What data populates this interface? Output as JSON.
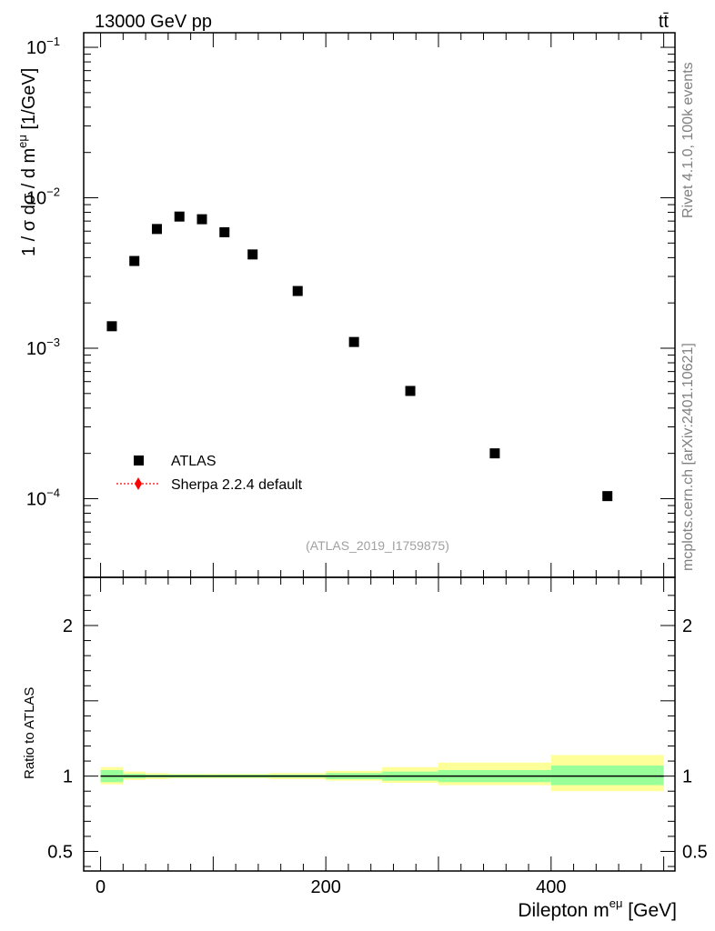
{
  "header": {
    "energy_label": "13000 GeV pp",
    "process_label": "tt̄"
  },
  "side_labels": {
    "rivet": "Rivet 4.1.0,  100k events",
    "mcplots": "mcplots.cern.ch [arXiv:2401.10621]"
  },
  "analysis_id": "(ATLAS_2019_I1759875)",
  "legend": {
    "data_label": "ATLAS",
    "mc_label": "Sherpa 2.2.4 default",
    "mc_color": "#ff0000"
  },
  "colors": {
    "band_outer": "#ffff99",
    "band_inner": "#99ff99"
  },
  "chart_data": {
    "type": "scatter",
    "title": "",
    "xlabel": "Dilepton m^eμ [GeV]",
    "ylabel": "1 / σ dσ / d m^eμ [1/GeV]",
    "ratio_ylabel": "Ratio to ATLAS",
    "xlim": [
      -15,
      510
    ],
    "ylim": [
      3e-05,
      0.125
    ],
    "yscale": "log",
    "ratio_ylim": [
      0.37,
      2.32
    ],
    "x_ticks": [
      0,
      200,
      400
    ],
    "y_ticks": [
      {
        "value": 0.0001,
        "base": "10",
        "exp": "−4"
      },
      {
        "value": 0.001,
        "base": "10",
        "exp": "−3"
      },
      {
        "value": 0.01,
        "base": "10",
        "exp": "−2"
      },
      {
        "value": 0.1,
        "base": "10",
        "exp": "−1"
      }
    ],
    "ratio_ticks": [
      {
        "value": 0.5,
        "label": "0.5"
      },
      {
        "value": 1,
        "label": "1"
      },
      {
        "value": 2,
        "label": "2"
      }
    ],
    "series": [
      {
        "name": "ATLAS",
        "bins": [
          [
            0,
            20
          ],
          [
            20,
            40
          ],
          [
            40,
            60
          ],
          [
            60,
            80
          ],
          [
            80,
            100
          ],
          [
            100,
            120
          ],
          [
            120,
            150
          ],
          [
            150,
            200
          ],
          [
            200,
            250
          ],
          [
            250,
            300
          ],
          [
            300,
            400
          ],
          [
            400,
            500
          ]
        ],
        "x": [
          10,
          30,
          50,
          70,
          90,
          110,
          135,
          175,
          225,
          275,
          350,
          450
        ],
        "values": [
          0.0014,
          0.0038,
          0.0062,
          0.0075,
          0.0072,
          0.0059,
          0.0042,
          0.0024,
          0.0011,
          0.00052,
          0.0002,
          0.000104
        ]
      }
    ],
    "ratio_bands": [
      {
        "bin": [
          0,
          20
        ],
        "inner": [
          0.96,
          1.04
        ],
        "outer": [
          0.945,
          1.06
        ]
      },
      {
        "bin": [
          20,
          40
        ],
        "inner": [
          0.985,
          1.015
        ],
        "outer": [
          0.975,
          1.03
        ]
      },
      {
        "bin": [
          40,
          60
        ],
        "inner": [
          0.99,
          1.01
        ],
        "outer": [
          0.98,
          1.02
        ]
      },
      {
        "bin": [
          60,
          80
        ],
        "inner": [
          0.99,
          1.01
        ],
        "outer": [
          0.985,
          1.015
        ]
      },
      {
        "bin": [
          80,
          100
        ],
        "inner": [
          0.99,
          1.01
        ],
        "outer": [
          0.985,
          1.015
        ]
      },
      {
        "bin": [
          100,
          120
        ],
        "inner": [
          0.99,
          1.01
        ],
        "outer": [
          0.985,
          1.015
        ]
      },
      {
        "bin": [
          120,
          150
        ],
        "inner": [
          0.99,
          1.01
        ],
        "outer": [
          0.985,
          1.015
        ]
      },
      {
        "bin": [
          150,
          200
        ],
        "inner": [
          0.99,
          1.01
        ],
        "outer": [
          0.98,
          1.02
        ]
      },
      {
        "bin": [
          200,
          250
        ],
        "inner": [
          0.98,
          1.02
        ],
        "outer": [
          0.97,
          1.035
        ]
      },
      {
        "bin": [
          250,
          300
        ],
        "inner": [
          0.97,
          1.03
        ],
        "outer": [
          0.955,
          1.06
        ]
      },
      {
        "bin": [
          300,
          400
        ],
        "inner": [
          0.96,
          1.04
        ],
        "outer": [
          0.94,
          1.09
        ]
      },
      {
        "bin": [
          400,
          500
        ],
        "inner": [
          0.94,
          1.07
        ],
        "outer": [
          0.9,
          1.14
        ]
      }
    ]
  }
}
